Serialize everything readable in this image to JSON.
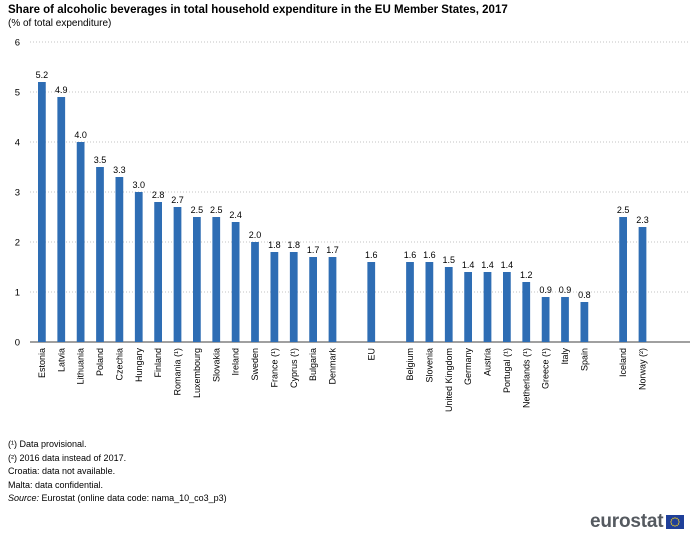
{
  "header": {
    "title": "Share of alcoholic beverages in total household expenditure in the EU Member States, 2017",
    "subtitle": "(% of total expenditure)"
  },
  "chart_data": {
    "type": "bar",
    "title": "Share of alcoholic beverages in total household expenditure in the EU Member States, 2017",
    "subtitle": "(% of total expenditure)",
    "categories": [
      "Estonia",
      "Latvia",
      "Lithuania",
      "Poland",
      "Czechia",
      "Hungary",
      "Finland",
      "Romania (¹)",
      "Luxembourg",
      "Slovakia",
      "Ireland",
      "Sweden",
      "France (¹)",
      "Cyprus (¹)",
      "Bulgaria",
      "Denmark",
      "EU",
      "Belgium",
      "Slovenia",
      "United Kingdom",
      "Germany",
      "Austria",
      "Portugal (¹)",
      "Netherlands (¹)",
      "Greece (¹)",
      "Italy",
      "Spain",
      "Iceland",
      "Norway (²)"
    ],
    "values": [
      5.2,
      4.9,
      4.0,
      3.5,
      3.3,
      3.0,
      2.8,
      2.7,
      2.5,
      2.5,
      2.4,
      2.0,
      1.8,
      1.8,
      1.7,
      1.7,
      1.6,
      1.6,
      1.6,
      1.5,
      1.4,
      1.4,
      1.4,
      1.2,
      0.9,
      0.9,
      0.8,
      2.5,
      2.3
    ],
    "value_labels": [
      "5.2",
      "4.9",
      "4.0",
      "3.5",
      "3.3",
      "3.0",
      "2.8",
      "2.7",
      "2.5",
      "2.5",
      "2.4",
      "2.0",
      "1.8",
      "1.8",
      "1.7",
      "1.7",
      "1.6",
      "1.6",
      "1.6",
      "1.5",
      "1.4",
      "1.4",
      "1.4",
      "1.2",
      "0.9",
      "0.9",
      "0.8",
      "2.5",
      "2.3"
    ],
    "ylim": [
      0,
      6
    ],
    "yticks": [
      "0",
      "1",
      "2",
      "3",
      "4",
      "5",
      "6"
    ],
    "grid": "horizontal dotted",
    "legend": "none",
    "bar_color": "#2e6db4"
  },
  "footnotes": {
    "note1": "(¹) Data provisional.",
    "note2": "(²) 2016 data instead of 2017.",
    "note3": "Croatia: data not available.",
    "note4": "Malta: data confidential.",
    "source_label": "Source:",
    "source_text": " Eurostat (online data code: nama_10_co3_p3)"
  },
  "branding": {
    "logo_text": "eurostat"
  }
}
